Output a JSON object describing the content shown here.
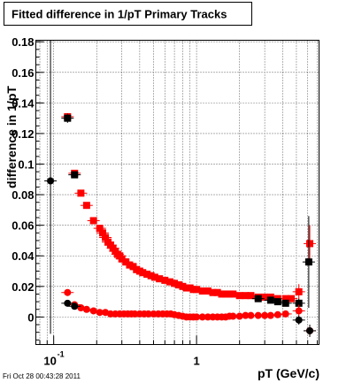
{
  "chart_data": {
    "type": "scatter",
    "title": "Fitted difference in 1/pT  Primary Tracks",
    "xlabel": "pT (GeV/c)",
    "ylabel": "difference in 1/pT",
    "x_scale": "log",
    "xlim": [
      0.075,
      7.2
    ],
    "ylim": [
      -0.018,
      0.181
    ],
    "grid": true,
    "x_tick_labels": [
      {
        "value": 0.1,
        "base": "10",
        "exp": "-1"
      },
      {
        "value": 1,
        "base": "1",
        "exp": ""
      }
    ],
    "y_ticks": [
      0,
      0.02,
      0.04,
      0.06,
      0.08,
      0.1,
      0.12,
      0.14,
      0.16,
      0.18
    ],
    "y_tick_labels": [
      "0",
      "0.02",
      "0.04",
      "0.06",
      "0.08",
      "0.1",
      "0.12",
      "0.14",
      "0.16",
      "0.18"
    ],
    "series": [
      {
        "color": "#ff0000",
        "marker": "square",
        "points": [
          [
            0.125,
            0.131
          ],
          [
            0.14,
            0.094
          ],
          [
            0.155,
            0.081
          ],
          [
            0.17,
            0.073
          ],
          [
            0.19,
            0.063
          ],
          [
            0.21,
            0.058
          ],
          [
            0.22,
            0.055
          ],
          [
            0.23,
            0.052
          ],
          [
            0.24,
            0.049
          ],
          [
            0.25,
            0.047
          ],
          [
            0.26,
            0.045
          ],
          [
            0.27,
            0.043
          ],
          [
            0.28,
            0.041
          ],
          [
            0.29,
            0.04
          ],
          [
            0.3,
            0.038
          ],
          [
            0.32,
            0.036
          ],
          [
            0.34,
            0.034
          ],
          [
            0.36,
            0.033
          ],
          [
            0.38,
            0.031
          ],
          [
            0.4,
            0.03
          ],
          [
            0.42,
            0.029
          ],
          [
            0.45,
            0.028
          ],
          [
            0.48,
            0.027
          ],
          [
            0.51,
            0.026
          ],
          [
            0.55,
            0.025
          ],
          [
            0.6,
            0.024
          ],
          [
            0.65,
            0.023
          ],
          [
            0.7,
            0.022
          ],
          [
            0.75,
            0.021
          ],
          [
            0.8,
            0.02
          ],
          [
            0.85,
            0.019
          ],
          [
            0.9,
            0.019
          ],
          [
            0.95,
            0.018
          ],
          [
            1.0,
            0.018
          ],
          [
            1.1,
            0.017
          ],
          [
            1.2,
            0.017
          ],
          [
            1.3,
            0.016
          ],
          [
            1.4,
            0.016
          ],
          [
            1.5,
            0.015
          ],
          [
            1.6,
            0.015
          ],
          [
            1.7,
            0.015
          ],
          [
            1.8,
            0.015
          ],
          [
            2.0,
            0.014
          ],
          [
            2.2,
            0.014
          ],
          [
            2.4,
            0.014
          ],
          [
            2.7,
            0.013
          ],
          [
            3.0,
            0.013
          ],
          [
            3.3,
            0.013
          ],
          [
            3.7,
            0.012
          ],
          [
            4.2,
            0.012
          ],
          [
            4.6,
            0.012
          ],
          [
            5.2,
            0.0165
          ],
          [
            6.2,
            0.048
          ]
        ],
        "yerr": [
          0.0,
          0.0,
          0.0,
          0.0,
          0.0,
          0.0,
          0.0,
          0.0,
          0.0,
          0.0,
          0.0,
          0.0,
          0.0,
          0.0,
          0.0,
          0.0,
          0.0,
          0.0,
          0.0,
          0.0,
          0.0,
          0.0,
          0.0,
          0.0,
          0.0,
          0.0,
          0.0,
          0.0,
          0.0,
          0.0,
          0.0,
          0.0,
          0.0,
          0.0,
          0.0,
          0.0,
          0.0,
          0.0,
          0.0,
          0.0,
          0.0,
          0.0,
          0.0,
          0.0,
          0.0,
          0.0,
          0.0,
          0.0,
          0.0,
          0.0,
          0.0,
          0.005,
          0.012
        ]
      },
      {
        "color": "#000000",
        "marker": "square",
        "points": [
          [
            0.125,
            0.13
          ],
          [
            0.14,
            0.093
          ],
          [
            2.7,
            0.012
          ],
          [
            3.3,
            0.011
          ],
          [
            3.7,
            0.01
          ],
          [
            4.2,
            0.009
          ],
          [
            5.2,
            0.009
          ],
          [
            6.1,
            0.036
          ]
        ],
        "yerr": [
          0.003,
          0.002,
          0.0,
          0.0,
          0.0,
          0.0,
          0.003,
          0.03
        ]
      },
      {
        "color": "#ff0000",
        "marker": "circle",
        "points": [
          [
            0.125,
            0.016
          ],
          [
            0.14,
            0.008
          ],
          [
            0.155,
            0.006
          ],
          [
            0.17,
            0.005
          ],
          [
            0.19,
            0.004
          ],
          [
            0.21,
            0.003
          ],
          [
            0.23,
            0.003
          ],
          [
            0.25,
            0.002
          ],
          [
            0.27,
            0.002
          ],
          [
            0.29,
            0.002
          ],
          [
            0.31,
            0.002
          ],
          [
            0.33,
            0.002
          ],
          [
            0.35,
            0.002
          ],
          [
            0.37,
            0.002
          ],
          [
            0.4,
            0.002
          ],
          [
            0.43,
            0.002
          ],
          [
            0.46,
            0.002
          ],
          [
            0.5,
            0.002
          ],
          [
            0.54,
            0.002
          ],
          [
            0.58,
            0.002
          ],
          [
            0.62,
            0.002
          ],
          [
            0.66,
            0.002
          ],
          [
            0.7,
            0.0015
          ],
          [
            0.75,
            0.001
          ],
          [
            0.8,
            0.0005
          ],
          [
            0.85,
            0.0
          ],
          [
            0.9,
            0.0
          ],
          [
            0.95,
            0.0
          ],
          [
            1.0,
            0.0
          ],
          [
            1.1,
            0.0
          ],
          [
            1.2,
            0.0
          ],
          [
            1.3,
            0.0
          ],
          [
            1.4,
            0.0
          ],
          [
            1.5,
            0.0
          ],
          [
            1.6,
            0.0
          ],
          [
            1.7,
            0.0005
          ],
          [
            1.8,
            0.0005
          ],
          [
            2.0,
            0.0005
          ],
          [
            2.2,
            0.001
          ],
          [
            2.4,
            0.001
          ],
          [
            2.7,
            0.001
          ],
          [
            3.0,
            0.001
          ],
          [
            3.3,
            0.001
          ],
          [
            3.7,
            0.0015
          ],
          [
            4.2,
            0.002
          ],
          [
            5.2,
            0.004
          ],
          [
            6.2,
            -0.009
          ]
        ],
        "yerr": [
          0.0,
          0.0,
          0.0,
          0.0,
          0.0,
          0.0,
          0.0,
          0.0,
          0.0,
          0.0,
          0.0,
          0.0,
          0.0,
          0.0,
          0.0,
          0.0,
          0.0,
          0.0,
          0.0,
          0.0,
          0.0,
          0.0,
          0.0,
          0.0,
          0.0,
          0.0,
          0.0,
          0.0,
          0.0,
          0.0,
          0.0,
          0.0,
          0.0,
          0.0,
          0.0,
          0.0,
          0.0,
          0.0,
          0.0,
          0.0,
          0.0,
          0.0,
          0.0,
          0.0,
          0.0,
          0.004,
          0.004
        ]
      },
      {
        "color": "#000000",
        "marker": "circle",
        "points": [
          [
            0.095,
            0.089
          ],
          [
            0.125,
            0.009
          ],
          [
            0.14,
            0.007
          ],
          [
            5.2,
            -0.002
          ],
          [
            6.2,
            -0.009
          ]
        ],
        "yerr": [
          0.1,
          0.002,
          0.0,
          0.003,
          0.004
        ]
      }
    ]
  },
  "footer": {
    "timestamp": "Fri Oct 28 00:43:28 2011"
  }
}
